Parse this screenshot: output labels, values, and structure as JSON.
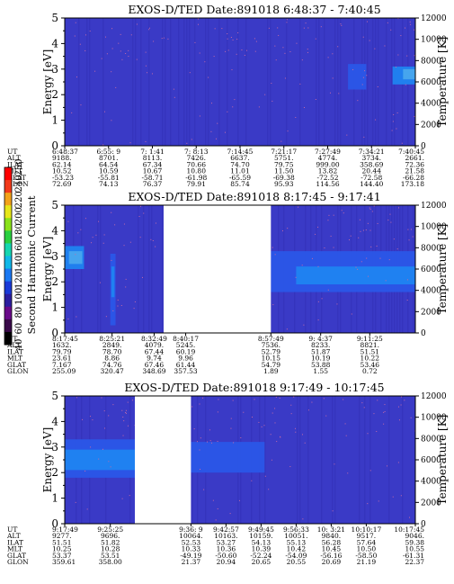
{
  "colors": {
    "background": "#3a3ac6",
    "gap": "#ffffff",
    "speckle": "#c46aa8",
    "band_medium": "#2a58e8",
    "band_bright": "#1e86f2",
    "band_cyan": "#4aa8ee"
  },
  "colorbar": {
    "label": "Second Harmonic Current",
    "ticks": [
      "40",
      "60",
      "80",
      "100",
      "120",
      "140",
      "160",
      "180",
      "200",
      "220",
      "240",
      "250"
    ],
    "ticks_rotated": [
      "40",
      "60",
      "80",
      "100",
      "120",
      "140",
      "160",
      "180",
      "200",
      "220",
      "240",
      "250"
    ],
    "colors": [
      "#000000",
      "#3a0a4a",
      "#6a0a8a",
      "#2c1ea0",
      "#1a3ad8",
      "#1a78f2",
      "#10b8e8",
      "#16d6b0",
      "#2ad040",
      "#8ae21a",
      "#e6e61a",
      "#f2a21a",
      "#f23a1a",
      "#ff0000"
    ]
  },
  "chart_data": [
    {
      "type": "heatmap",
      "title": "EXOS-D/TED    Date:891018   6:48:37 - 7:40:45",
      "ylabel": "Energy [eV]",
      "y2label": "Temperature [K]",
      "ylim": [
        0,
        5
      ],
      "y2lim": [
        0,
        12000
      ],
      "yticks": [
        "0",
        "1",
        "2",
        "3",
        "4",
        "5"
      ],
      "y2ticks": [
        "0",
        "2000",
        "4000",
        "6000",
        "8000",
        "10000",
        "12000"
      ],
      "gaps": [],
      "bands": [
        {
          "x0": 0.808,
          "x1": 0.86,
          "e0": 2.2,
          "e1": 3.2,
          "level": "medium"
        },
        {
          "x0": 0.935,
          "x1": 1.0,
          "e0": 2.4,
          "e1": 3.1,
          "level": "bright"
        },
        {
          "x0": 0.965,
          "x1": 1.0,
          "e0": 2.6,
          "e1": 3.0,
          "level": "cyan"
        }
      ],
      "orbit_rows": [
        "UT",
        "ALT",
        "ILAT",
        "MLT",
        "GLAT",
        "GLON"
      ],
      "orbit_table": [
        {
          "UT": "6:48:37",
          "ALT": "9188.",
          "ILAT": "62.14",
          "MLT": "10.52",
          "GLAT": "-53.23",
          "GLON": "72.69"
        },
        {
          "UT": "6:55: 9",
          "ALT": "8701.",
          "ILAT": "64.54",
          "MLT": "10.59",
          "GLAT": "-55.81",
          "GLON": "74.13"
        },
        {
          "UT": "7: 1:41",
          "ALT": "8113.",
          "ILAT": "67.34",
          "MLT": "10.67",
          "GLAT": "-58.71",
          "GLON": "76.37"
        },
        {
          "UT": "7: 8:13",
          "ALT": "7426.",
          "ILAT": "70.66",
          "MLT": "10.80",
          "GLAT": "-61.98",
          "GLON": "79.91"
        },
        {
          "UT": "7:14:45",
          "ALT": "6637.",
          "ILAT": "74.70",
          "MLT": "11.01",
          "GLAT": "-65.59",
          "GLON": "85.74"
        },
        {
          "UT": "7:21:17",
          "ALT": "5751.",
          "ILAT": "79.75",
          "MLT": "11.50",
          "GLAT": "-69.38",
          "GLON": "95.93"
        },
        {
          "UT": "7:27:49",
          "ALT": "4774.",
          "ILAT": "999.00",
          "MLT": "13.82",
          "GLAT": "-72.52",
          "GLON": "114.56"
        },
        {
          "UT": "7:34:21",
          "ALT": "3734.",
          "ILAT": "358.69",
          "MLT": "20.44",
          "GLAT": "-72.58",
          "GLON": "144.40"
        },
        {
          "UT": "7:40:45",
          "ALT": "2661.",
          "ILAT": "72.36",
          "MLT": "21.58",
          "GLAT": "-66.28",
          "GLON": "173.18"
        }
      ]
    },
    {
      "type": "heatmap",
      "title": "EXOS-D/TED    Date:891018   8:17:45 - 9:17:41",
      "ylabel": "Energy [eV]",
      "y2label": "Temperature [K]",
      "ylim": [
        0,
        5
      ],
      "y2lim": [
        0,
        12000
      ],
      "yticks": [
        "0",
        "1",
        "2",
        "3",
        "4",
        "5"
      ],
      "y2ticks": [
        "0",
        "2000",
        "4000",
        "6000",
        "8000",
        "10000",
        "12000"
      ],
      "gaps": [
        {
          "x0": 0.282,
          "x1": 0.588
        }
      ],
      "bands": [
        {
          "x0": 0.0,
          "x1": 0.055,
          "e0": 2.5,
          "e1": 3.4,
          "level": "bright"
        },
        {
          "x0": 0.012,
          "x1": 0.05,
          "e0": 2.7,
          "e1": 3.2,
          "level": "cyan"
        },
        {
          "x0": 0.13,
          "x1": 0.145,
          "e0": 0.3,
          "e1": 3.1,
          "level": "medium"
        },
        {
          "x0": 0.133,
          "x1": 0.142,
          "e0": 1.4,
          "e1": 2.6,
          "level": "bright"
        },
        {
          "x0": 0.588,
          "x1": 1.0,
          "e0": 1.6,
          "e1": 3.2,
          "level": "medium"
        },
        {
          "x0": 0.66,
          "x1": 1.0,
          "e0": 1.9,
          "e1": 2.6,
          "level": "bright"
        }
      ],
      "orbit_rows": [
        "UT",
        "ALT",
        "ILAT",
        "MLT",
        "GLAT",
        "GLON"
      ],
      "orbit_table": [
        {
          "UT": "8:17:45",
          "ALT": "1632.",
          "ILAT": "79.79",
          "MLT": "23.61",
          "GLAT": "7.167",
          "GLON": "255.09"
        },
        {
          "UT": "8:25:21",
          "ALT": "2849.",
          "ILAT": "78.70",
          "MLT": "8.86",
          "GLAT": "74.76",
          "GLON": "320.47"
        },
        {
          "UT": "8:32:49",
          "ALT": "4079.",
          "ILAT": "67.44",
          "MLT": "9.74",
          "GLAT": "67.46",
          "GLON": "348.69"
        },
        {
          "UT": "8:40:17",
          "ALT": "5245.",
          "ILAT": "60.19",
          "MLT": "9.96",
          "GLAT": "61.44",
          "GLON": "357.53"
        },
        {
          "UT": "8:57:49",
          "ALT": "7536.",
          "ILAT": "52.79",
          "MLT": "10.15",
          "GLAT": "54.79",
          "GLON": "1.89"
        },
        {
          "UT": "9: 4:37",
          "ALT": "8233.",
          "ILAT": "51.87",
          "MLT": "10.19",
          "GLAT": "53.88",
          "GLON": "1.55"
        },
        {
          "UT": "9:11:25",
          "ALT": "8821.",
          "ILAT": "51.51",
          "MLT": "10.22",
          "GLAT": "53.46",
          "GLON": "0.72"
        }
      ]
    },
    {
      "type": "heatmap",
      "title": "EXOS-D/TED    Date:891018   9:17:49 - 10:17:45",
      "ylabel": "Energy [eV]",
      "y2label": "Temperature [K]",
      "ylim": [
        0,
        5
      ],
      "y2lim": [
        0,
        12000
      ],
      "yticks": [
        "0",
        "1",
        "2",
        "3",
        "4",
        "5"
      ],
      "y2ticks": [
        "0",
        "2000",
        "4000",
        "6000",
        "8000",
        "10000",
        "12000"
      ],
      "gaps": [
        {
          "x0": 0.2,
          "x1": 0.36
        }
      ],
      "bands": [
        {
          "x0": 0.0,
          "x1": 0.2,
          "e0": 1.8,
          "e1": 3.3,
          "level": "medium"
        },
        {
          "x0": 0.0,
          "x1": 0.2,
          "e0": 2.1,
          "e1": 2.9,
          "level": "bright"
        },
        {
          "x0": 0.36,
          "x1": 0.57,
          "e0": 2.0,
          "e1": 3.2,
          "level": "medium"
        }
      ],
      "orbit_rows": [
        "UT",
        "ALT",
        "ILAT",
        "MLT",
        "GLAT",
        "GLON"
      ],
      "orbit_table": [
        {
          "UT": "9:17:49",
          "ALT": "9277.",
          "ILAT": "51.51",
          "MLT": "10.25",
          "GLAT": "53.37",
          "GLON": "359.61"
        },
        {
          "UT": "9:25:25",
          "ALT": "9696.",
          "ILAT": "51.82",
          "MLT": "10.28",
          "GLAT": "53.51",
          "GLON": "358.00"
        },
        {
          "UT": "9:36: 9",
          "ALT": "10064.",
          "ILAT": "52.53",
          "MLT": "10.33",
          "GLAT": "-49.19",
          "GLON": "21.37"
        },
        {
          "UT": "9:42:57",
          "ALT": "10163.",
          "ILAT": "53.27",
          "MLT": "10.36",
          "GLAT": "-50.60",
          "GLON": "20.94"
        },
        {
          "UT": "9:49:45",
          "ALT": "10159.",
          "ILAT": "54.13",
          "MLT": "10.39",
          "GLAT": "-52.24",
          "GLON": "20.65"
        },
        {
          "UT": "9:56:33",
          "ALT": "10051.",
          "ILAT": "55.13",
          "MLT": "10.42",
          "GLAT": "-54.09",
          "GLON": "20.55"
        },
        {
          "UT": "10: 3:21",
          "ALT": "9840.",
          "ILAT": "56.28",
          "MLT": "10.45",
          "GLAT": "-56.16",
          "GLON": "20.69"
        },
        {
          "UT": "10:10:17",
          "ALT": "9517.",
          "ILAT": "57.64",
          "MLT": "10.50",
          "GLAT": "-58.50",
          "GLON": "21.19"
        },
        {
          "UT": "10:17:45",
          "ALT": "9046.",
          "ILAT": "59.38",
          "MLT": "10.55",
          "GLAT": "-61.31",
          "GLON": "22.37"
        }
      ]
    }
  ]
}
